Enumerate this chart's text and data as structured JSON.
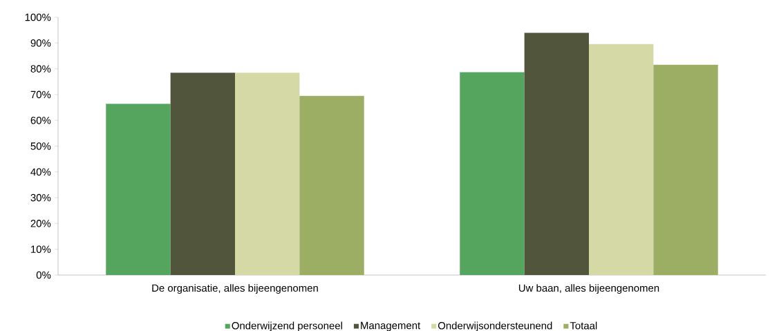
{
  "chart_data": {
    "type": "bar",
    "categories": [
      "De organisatie, alles bijeengenomen",
      "Uw baan, alles bijeengenomen"
    ],
    "series": [
      {
        "name": "Onderwijzend personeel",
        "color": "#55a55e",
        "values": [
          66.4,
          78.7
        ]
      },
      {
        "name": "Management",
        "color": "#51553b",
        "values": [
          78.5,
          94.0
        ]
      },
      {
        "name": "Onderwijsondersteunend",
        "color": "#d5d9a6",
        "values": [
          78.5,
          89.6
        ]
      },
      {
        "name": "Totaal",
        "color": "#9cad64",
        "values": [
          69.5,
          81.6
        ]
      }
    ],
    "ylim": [
      0,
      100
    ],
    "yticks": [
      {
        "value": 0,
        "label": "0%"
      },
      {
        "value": 10,
        "label": "10%"
      },
      {
        "value": 20,
        "label": "20%"
      },
      {
        "value": 30,
        "label": "30%"
      },
      {
        "value": 40,
        "label": "40%"
      },
      {
        "value": 50,
        "label": "50%"
      },
      {
        "value": 60,
        "label": "60%"
      },
      {
        "value": 70,
        "label": "70%"
      },
      {
        "value": 80,
        "label": "80%"
      },
      {
        "value": 90,
        "label": "90%"
      },
      {
        "value": 100,
        "label": "100%"
      }
    ],
    "grid": false,
    "legend": "bottom"
  }
}
